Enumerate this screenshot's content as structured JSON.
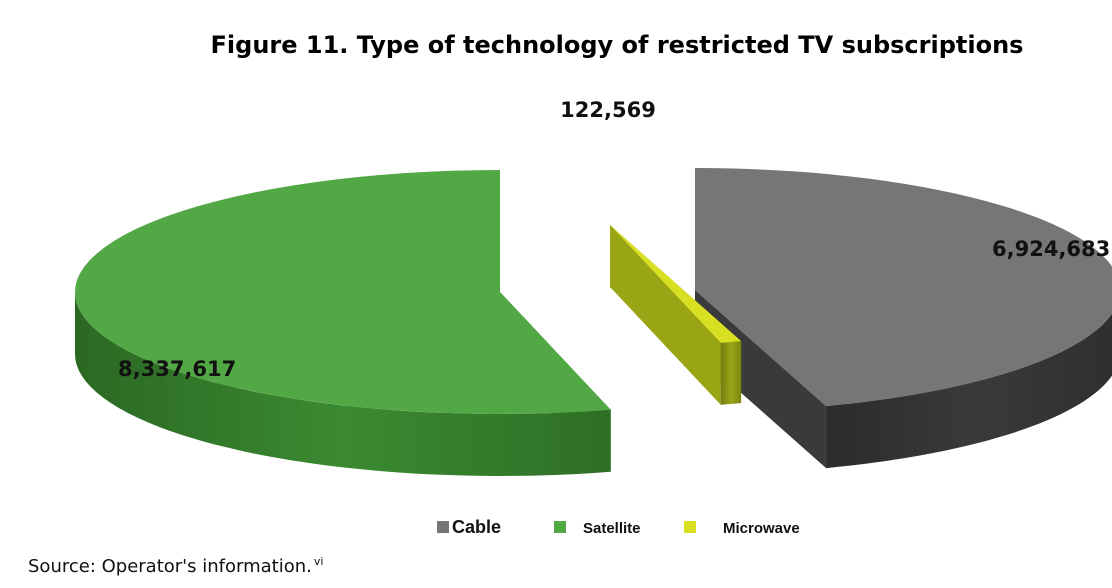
{
  "chart_data": {
    "type": "pie",
    "title": "Figure 11. Type of technology of restricted TV subscriptions",
    "categories": [
      "Cable",
      "Satellite",
      "Microwave"
    ],
    "values": [
      6924683,
      8337617,
      122569
    ],
    "value_labels": [
      "6,924,683",
      "8,337,617",
      "122,569"
    ],
    "colors": {
      "Cable": {
        "top": "#767679",
        "side": "#3a3a3c"
      },
      "Satellite": {
        "top": "#53a846",
        "side": "#3a8a30"
      },
      "Microwave": {
        "top": "#d9e021",
        "side": "#9aa516"
      }
    },
    "style": "3d-exploded",
    "legend_position": "bottom"
  },
  "source": {
    "text": "Source: Operator's information.",
    "note_marker": "vi"
  }
}
